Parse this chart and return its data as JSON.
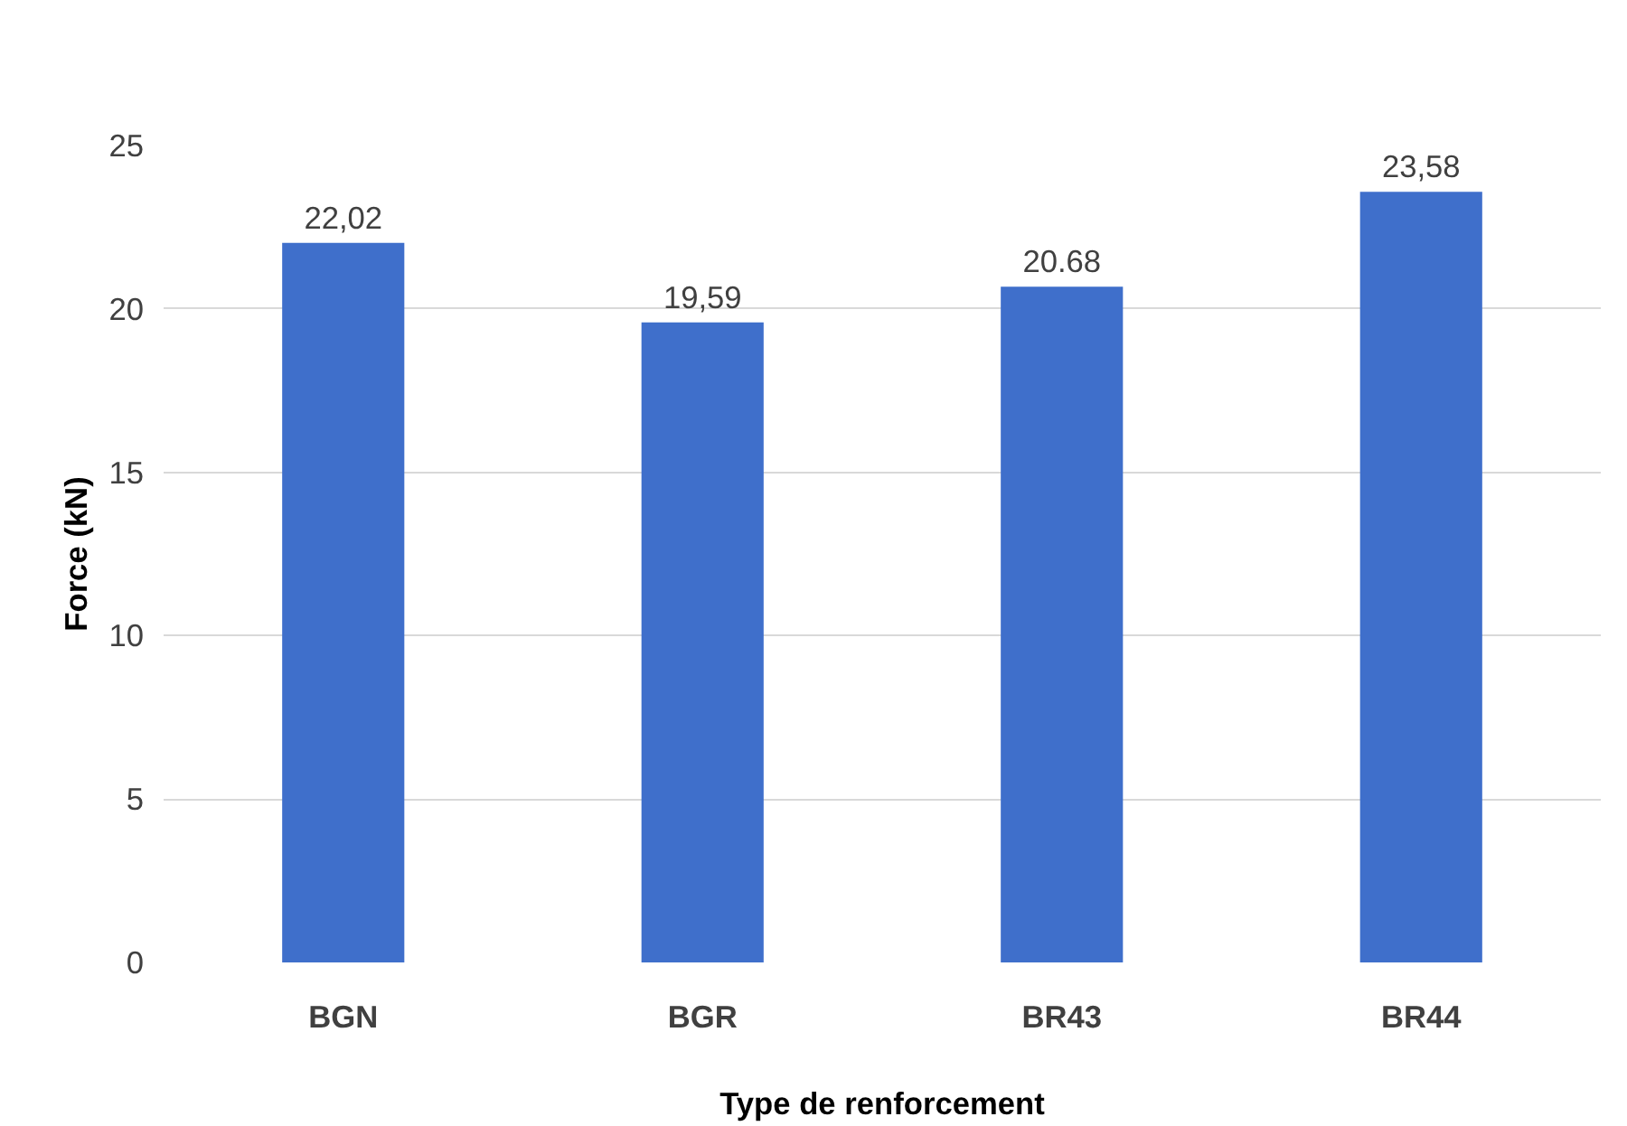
{
  "chart_data": {
    "type": "bar",
    "xlabel": "Type de renforcement",
    "ylabel": "Force (kN)",
    "categories": [
      "BGN",
      "BGR",
      "BR43",
      "BR44"
    ],
    "values": [
      22.02,
      19.59,
      20.68,
      23.58
    ],
    "value_labels": [
      "22,02",
      "19,59",
      "20.68",
      "23,58"
    ],
    "color": "#3f6fcb",
    "ylim": [
      0,
      25
    ],
    "yticks": [
      0,
      5,
      10,
      15,
      20,
      25
    ],
    "grid": "y"
  }
}
